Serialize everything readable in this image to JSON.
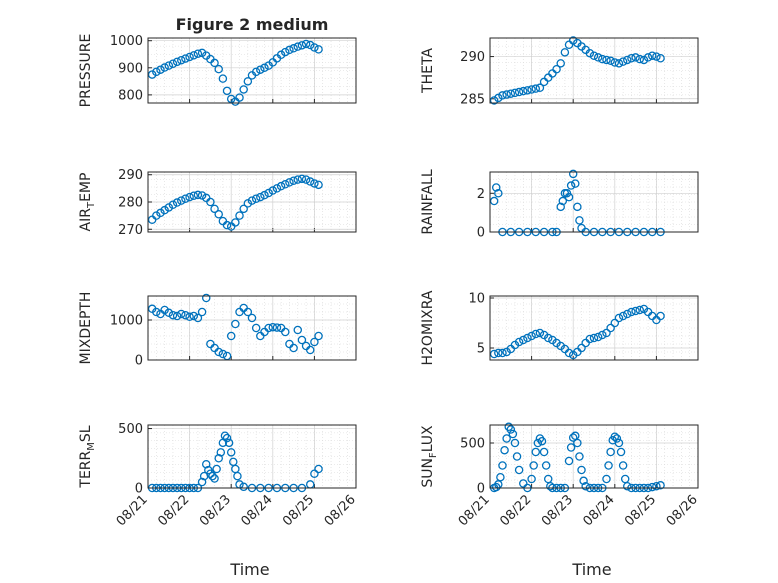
{
  "figure_title": "Figure 2 medium",
  "x_axis": {
    "label": "Time",
    "ticks": [
      "08/21",
      "08/22",
      "08/23",
      "08/24",
      "08/25",
      "08/26"
    ],
    "range": [
      21.0,
      26.0
    ]
  },
  "marker_color": "#0072BD",
  "chart_data": [
    {
      "type": "scatter",
      "id": "pressure",
      "ylabel": "PRESSURE",
      "ylabel_sub": "",
      "ylim": [
        770,
        1010
      ],
      "yticks": [
        800,
        900,
        1000
      ],
      "title": "Figure 2 medium",
      "x": [
        21.1,
        21.2,
        21.3,
        21.4,
        21.5,
        21.6,
        21.7,
        21.8,
        21.9,
        22.0,
        22.1,
        22.2,
        22.3,
        22.4,
        22.5,
        22.6,
        22.7,
        22.8,
        22.9,
        23.0,
        23.1,
        23.2,
        23.3,
        23.4,
        23.5,
        23.6,
        23.7,
        23.8,
        23.9,
        24.0,
        24.1,
        24.2,
        24.3,
        24.4,
        24.5,
        24.6,
        24.7,
        24.8,
        24.9,
        25.0,
        25.1
      ],
      "y": [
        875,
        885,
        893,
        901,
        908,
        915,
        922,
        928,
        934,
        940,
        946,
        952,
        955,
        945,
        932,
        918,
        895,
        860,
        815,
        785,
        775,
        790,
        820,
        850,
        872,
        885,
        893,
        900,
        908,
        920,
        935,
        948,
        958,
        966,
        972,
        978,
        983,
        988,
        984,
        975,
        968
      ]
    },
    {
      "type": "scatter",
      "id": "theta",
      "ylabel": "THETA",
      "ylabel_sub": "",
      "ylim": [
        284.5,
        292.2
      ],
      "yticks": [
        285,
        290
      ],
      "x": [
        21.1,
        21.2,
        21.3,
        21.4,
        21.5,
        21.6,
        21.7,
        21.8,
        21.9,
        22.0,
        22.1,
        22.2,
        22.3,
        22.4,
        22.5,
        22.6,
        22.7,
        22.8,
        22.9,
        23.0,
        23.1,
        23.2,
        23.3,
        23.4,
        23.5,
        23.6,
        23.7,
        23.8,
        23.9,
        24.0,
        24.1,
        24.2,
        24.3,
        24.4,
        24.5,
        24.6,
        24.7,
        24.8,
        24.9,
        25.0,
        25.1
      ],
      "y": [
        284.8,
        285.1,
        285.4,
        285.5,
        285.6,
        285.7,
        285.8,
        285.9,
        286.0,
        286.1,
        286.2,
        286.3,
        287.0,
        287.5,
        288.0,
        288.5,
        289.2,
        290.5,
        291.4,
        291.9,
        291.6,
        291.2,
        290.8,
        290.4,
        290.1,
        289.9,
        289.7,
        289.6,
        289.5,
        289.3,
        289.2,
        289.4,
        289.6,
        289.8,
        289.9,
        289.7,
        289.6,
        289.9,
        290.1,
        290.0,
        289.8
      ]
    },
    {
      "type": "scatter",
      "id": "air_temp",
      "ylabel": "AIR",
      "ylabel_sub": "T",
      "ylabel_rest": "EMP",
      "ylim": [
        269,
        291
      ],
      "yticks": [
        270,
        280,
        290
      ],
      "x": [
        21.1,
        21.2,
        21.3,
        21.4,
        21.5,
        21.6,
        21.7,
        21.8,
        21.9,
        22.0,
        22.1,
        22.2,
        22.3,
        22.4,
        22.5,
        22.6,
        22.7,
        22.8,
        22.9,
        23.0,
        23.1,
        23.2,
        23.3,
        23.4,
        23.5,
        23.6,
        23.7,
        23.8,
        23.9,
        24.0,
        24.1,
        24.2,
        24.3,
        24.4,
        24.5,
        24.6,
        24.7,
        24.8,
        24.9,
        25.0,
        25.1
      ],
      "y": [
        273.5,
        275.0,
        276.0,
        277.0,
        278.0,
        279.0,
        279.8,
        280.5,
        281.2,
        281.8,
        282.3,
        282.6,
        282.4,
        281.5,
        280.0,
        277.5,
        275.5,
        273.0,
        271.5,
        271.0,
        272.5,
        275.0,
        277.5,
        279.5,
        280.5,
        281.2,
        281.8,
        282.5,
        283.3,
        284.2,
        285.0,
        285.8,
        286.5,
        287.2,
        287.8,
        288.2,
        288.5,
        288.2,
        287.5,
        286.8,
        286.3
      ]
    },
    {
      "type": "scatter",
      "id": "rainfall",
      "ylabel": "RAINFALL",
      "ylabel_sub": "",
      "ylim": [
        0,
        3.1
      ],
      "yticks": [
        0,
        2
      ],
      "x": [
        21.1,
        21.15,
        21.2,
        21.3,
        21.5,
        21.7,
        21.9,
        22.1,
        22.3,
        22.5,
        22.6,
        22.7,
        22.75,
        22.8,
        22.85,
        22.9,
        22.95,
        23.0,
        23.05,
        23.1,
        23.15,
        23.2,
        23.3,
        23.5,
        23.7,
        23.9,
        24.1,
        24.3,
        24.5,
        24.7,
        24.9,
        25.1
      ],
      "y": [
        1.6,
        2.3,
        2.0,
        0,
        0,
        0,
        0,
        0,
        0,
        0,
        0,
        1.3,
        1.6,
        2.0,
        2.0,
        1.8,
        2.4,
        3.0,
        2.5,
        1.3,
        0.6,
        0.2,
        0,
        0,
        0,
        0,
        0,
        0,
        0,
        0,
        0,
        0
      ]
    },
    {
      "type": "scatter",
      "id": "mixdepth",
      "ylabel": "MIXDEPTH",
      "ylabel_sub": "",
      "ylim": [
        0,
        1600
      ],
      "yticks": [
        0,
        1000
      ],
      "x": [
        21.1,
        21.2,
        21.3,
        21.4,
        21.5,
        21.6,
        21.7,
        21.8,
        21.9,
        22.0,
        22.1,
        22.2,
        22.3,
        22.4,
        22.5,
        22.6,
        22.7,
        22.8,
        22.9,
        23.0,
        23.1,
        23.2,
        23.3,
        23.4,
        23.5,
        23.6,
        23.7,
        23.8,
        23.9,
        24.0,
        24.1,
        24.2,
        24.3,
        24.4,
        24.5,
        24.6,
        24.7,
        24.8,
        24.9,
        25.0,
        25.1
      ],
      "y": [
        1280,
        1200,
        1150,
        1250,
        1180,
        1120,
        1100,
        1150,
        1120,
        1080,
        1100,
        1050,
        1200,
        1550,
        400,
        300,
        200,
        150,
        100,
        600,
        900,
        1200,
        1300,
        1200,
        1050,
        800,
        600,
        700,
        800,
        820,
        810,
        800,
        700,
        400,
        300,
        750,
        500,
        350,
        250,
        450,
        600
      ]
    },
    {
      "type": "scatter",
      "id": "h2omixra",
      "ylabel": "H2OMIXRA",
      "ylabel_sub": "",
      "ylim": [
        3.8,
        10.2
      ],
      "yticks": [
        5,
        10
      ],
      "x": [
        21.1,
        21.2,
        21.3,
        21.4,
        21.5,
        21.6,
        21.7,
        21.8,
        21.9,
        22.0,
        22.1,
        22.2,
        22.3,
        22.4,
        22.5,
        22.6,
        22.7,
        22.8,
        22.9,
        23.0,
        23.1,
        23.2,
        23.3,
        23.4,
        23.5,
        23.6,
        23.7,
        23.8,
        23.9,
        24.0,
        24.1,
        24.2,
        24.3,
        24.4,
        24.5,
        24.6,
        24.7,
        24.8,
        24.9,
        25.0,
        25.1
      ],
      "y": [
        4.4,
        4.5,
        4.5,
        4.6,
        4.9,
        5.3,
        5.6,
        5.8,
        6.0,
        6.2,
        6.4,
        6.5,
        6.3,
        6.0,
        5.8,
        5.5,
        5.2,
        4.9,
        4.5,
        4.3,
        4.6,
        5.0,
        5.5,
        5.9,
        6.0,
        6.1,
        6.3,
        6.5,
        7.0,
        7.5,
        8.0,
        8.2,
        8.4,
        8.6,
        8.7,
        8.8,
        8.9,
        8.6,
        8.2,
        7.8,
        8.2
      ]
    },
    {
      "type": "scatter",
      "id": "terr_msl",
      "ylabel": "TERR",
      "ylabel_sub": "M",
      "ylabel_rest": "SL",
      "ylim": [
        0,
        530
      ],
      "yticks": [
        0,
        500
      ],
      "x": [
        21.1,
        21.2,
        21.3,
        21.4,
        21.5,
        21.6,
        21.7,
        21.8,
        21.9,
        22.0,
        22.1,
        22.2,
        22.3,
        22.35,
        22.4,
        22.45,
        22.5,
        22.55,
        22.6,
        22.65,
        22.7,
        22.75,
        22.8,
        22.85,
        22.9,
        22.95,
        23.0,
        23.05,
        23.1,
        23.15,
        23.2,
        23.3,
        23.5,
        23.7,
        23.9,
        24.1,
        24.3,
        24.5,
        24.7,
        24.9,
        25.0,
        25.1
      ],
      "y": [
        0,
        0,
        0,
        0,
        0,
        0,
        0,
        0,
        0,
        0,
        0,
        0,
        50,
        100,
        200,
        150,
        120,
        100,
        80,
        160,
        250,
        300,
        380,
        440,
        420,
        380,
        300,
        220,
        160,
        100,
        30,
        10,
        0,
        0,
        0,
        0,
        0,
        0,
        0,
        30,
        120,
        160
      ]
    },
    {
      "type": "scatter",
      "id": "sun_flux",
      "ylabel": "SUN",
      "ylabel_sub": "F",
      "ylabel_rest": "LUX",
      "ylim": [
        0,
        700
      ],
      "yticks": [
        0,
        500
      ],
      "x": [
        21.1,
        21.15,
        21.2,
        21.25,
        21.3,
        21.35,
        21.4,
        21.45,
        21.5,
        21.55,
        21.6,
        21.65,
        21.7,
        21.8,
        21.9,
        22.0,
        22.05,
        22.1,
        22.15,
        22.2,
        22.25,
        22.3,
        22.35,
        22.4,
        22.45,
        22.5,
        22.6,
        22.7,
        22.8,
        22.9,
        22.95,
        23.0,
        23.05,
        23.1,
        23.15,
        23.2,
        23.25,
        23.3,
        23.4,
        23.5,
        23.6,
        23.7,
        23.8,
        23.85,
        23.9,
        23.95,
        24.0,
        24.05,
        24.1,
        24.15,
        24.2,
        24.25,
        24.3,
        24.4,
        24.5,
        24.6,
        24.7,
        24.8,
        24.9,
        25.0,
        25.1
      ],
      "y": [
        0,
        10,
        40,
        120,
        250,
        420,
        550,
        680,
        650,
        600,
        500,
        350,
        200,
        50,
        0,
        100,
        250,
        400,
        500,
        550,
        520,
        400,
        250,
        100,
        20,
        0,
        0,
        0,
        0,
        300,
        450,
        560,
        580,
        500,
        350,
        200,
        80,
        20,
        0,
        0,
        0,
        0,
        100,
        250,
        400,
        530,
        570,
        550,
        500,
        400,
        250,
        100,
        20,
        0,
        0,
        0,
        0,
        0,
        10,
        20,
        30
      ]
    }
  ]
}
